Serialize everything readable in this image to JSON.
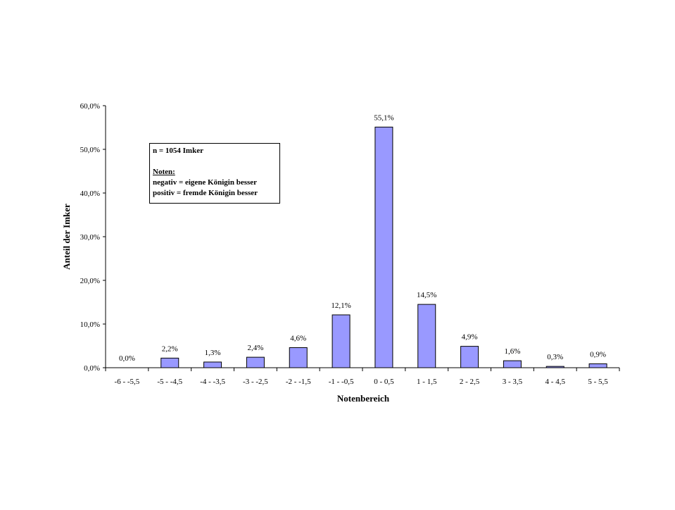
{
  "chart_data": {
    "type": "bar",
    "categories": [
      "-6 - -5,5",
      "-5 - -4,5",
      "-4 - -3,5",
      "-3 - -2,5",
      "-2 - -1,5",
      "-1 - -0,5",
      "0 - 0,5",
      "1 - 1,5",
      "2 - 2,5",
      "3 - 3,5",
      "4 - 4,5",
      "5 - 5,5"
    ],
    "values": [
      0.0,
      2.2,
      1.3,
      2.4,
      4.6,
      12.1,
      55.1,
      14.5,
      4.9,
      1.6,
      0.3,
      0.9
    ],
    "value_labels": [
      "0,0%",
      "2,2%",
      "1,3%",
      "2,4%",
      "4,6%",
      "12,1%",
      "55,1%",
      "14,5%",
      "4,9%",
      "1,6%",
      "0,3%",
      "0,9%"
    ],
    "yticks": [
      0,
      10,
      20,
      30,
      40,
      50,
      60
    ],
    "ytick_labels": [
      "0,0%",
      "10,0%",
      "20,0%",
      "30,0%",
      "40,0%",
      "50,0%",
      "60,0%"
    ],
    "ylim": [
      0,
      60
    ],
    "xlabel": "Notenbereich",
    "ylabel": "Anteil der Imker",
    "title": "",
    "grid": false,
    "bar_color": "#9999ff",
    "bar_edge_color": "#000000",
    "annotation": {
      "line1": "n = 1054 Imker",
      "line2": "Noten:",
      "line3": "negativ = eigene Königin besser",
      "line4": "positiv = fremde Königin besser"
    }
  }
}
